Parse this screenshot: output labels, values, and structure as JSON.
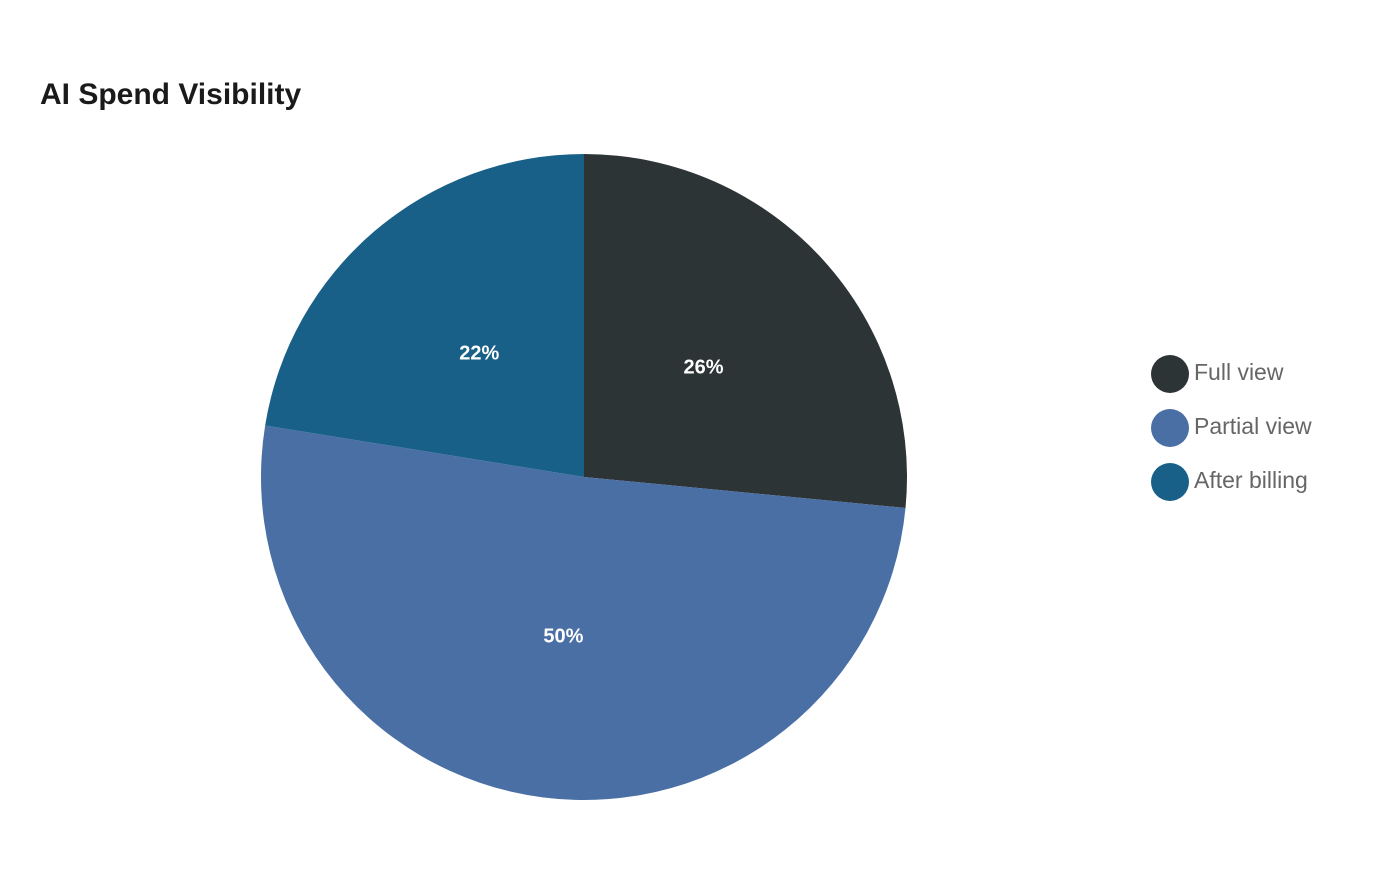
{
  "chart_data": {
    "type": "pie",
    "title": "AI Spend Visibility",
    "categories": [
      "Full view",
      "Partial view",
      "After billing"
    ],
    "values": [
      26,
      50,
      22
    ],
    "value_labels": [
      "26%",
      "50%",
      "22%"
    ],
    "colors": [
      "#2d3436",
      "#4a6fa5",
      "#186088"
    ],
    "legend": "right"
  }
}
